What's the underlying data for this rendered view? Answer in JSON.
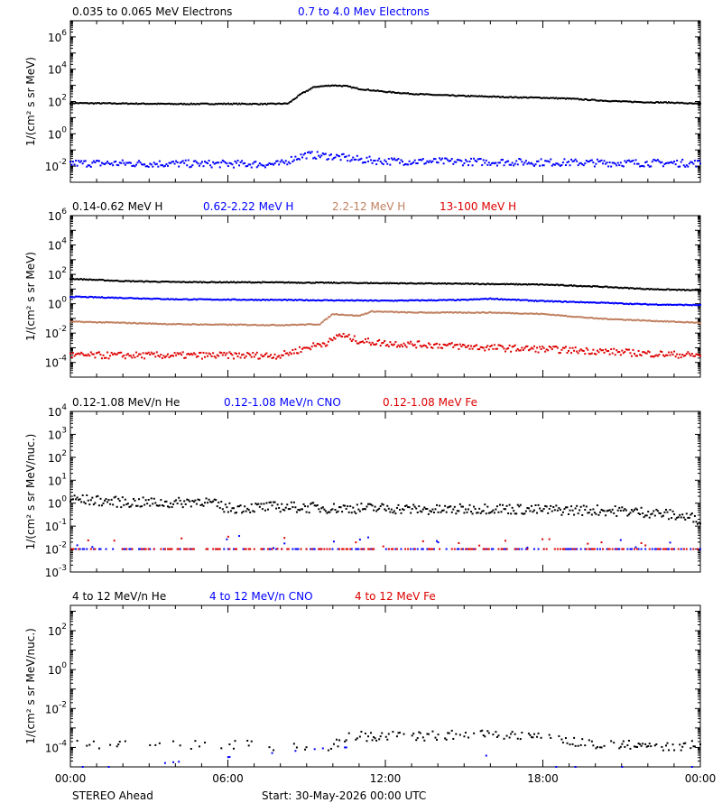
{
  "chart_data": [
    {
      "type": "scatter",
      "ylabel": "1/(cm² s sr MeV)",
      "yscale": "log",
      "ylim": [
        0.001,
        10000000
      ],
      "ytick_exps": [
        -2,
        0,
        2,
        4,
        6
      ],
      "xlim": [
        0,
        24
      ],
      "series": [
        {
          "name": "0.035 to 0.065 MeV Electrons",
          "color": "#000000",
          "shape": "line",
          "points": [
            [
              0,
              80
            ],
            [
              2,
              75
            ],
            [
              4,
              70
            ],
            [
              6,
              72
            ],
            [
              7.5,
              70
            ],
            [
              8.3,
              75
            ],
            [
              8.8,
              300
            ],
            [
              9.3,
              800
            ],
            [
              10,
              1000
            ],
            [
              10.5,
              900
            ],
            [
              11,
              600
            ],
            [
              12,
              400
            ],
            [
              13,
              300
            ],
            [
              14,
              250
            ],
            [
              15,
              220
            ],
            [
              16,
              200
            ],
            [
              17,
              180
            ],
            [
              18,
              170
            ],
            [
              19,
              150
            ],
            [
              20,
              120
            ],
            [
              21,
              100
            ],
            [
              22,
              90
            ],
            [
              23,
              85
            ],
            [
              24,
              70
            ]
          ]
        },
        {
          "name": "0.7 to 4.0 Mev Electrons",
          "color": "#0000ff",
          "shape": "noisy",
          "points": [
            [
              0,
              0.015
            ],
            [
              4,
              0.014
            ],
            [
              8,
              0.013
            ],
            [
              8.5,
              0.03
            ],
            [
              9,
              0.05
            ],
            [
              10,
              0.04
            ],
            [
              11,
              0.025
            ],
            [
              12,
              0.02
            ],
            [
              16,
              0.018
            ],
            [
              20,
              0.016
            ],
            [
              24,
              0.015
            ]
          ]
        }
      ]
    },
    {
      "type": "scatter",
      "ylabel": "1/(cm² s sr MeV)",
      "yscale": "log",
      "ylim": [
        1e-05,
        1000000
      ],
      "ytick_exps": [
        -4,
        -2,
        0,
        2,
        4,
        6
      ],
      "xlim": [
        0,
        24
      ],
      "series": [
        {
          "name": "0.14-0.62 MeV H",
          "color": "#000000",
          "shape": "line",
          "points": [
            [
              0,
              50
            ],
            [
              2,
              35
            ],
            [
              4,
              30
            ],
            [
              8,
              28
            ],
            [
              12,
              25
            ],
            [
              16,
              22
            ],
            [
              18,
              20
            ],
            [
              20,
              15
            ],
            [
              22,
              10
            ],
            [
              24,
              8
            ]
          ]
        },
        {
          "name": "0.62-2.22 MeV H",
          "color": "#0000ff",
          "shape": "line",
          "points": [
            [
              0,
              3
            ],
            [
              2,
              2.5
            ],
            [
              4,
              2
            ],
            [
              8,
              1.8
            ],
            [
              12,
              1.6
            ],
            [
              15,
              1.8
            ],
            [
              16,
              2.2
            ],
            [
              18,
              1.5
            ],
            [
              20,
              1.2
            ],
            [
              22,
              0.9
            ],
            [
              24,
              0.8
            ]
          ]
        },
        {
          "name": "2.2-12 MeV H",
          "color": "#c08060",
          "shape": "line",
          "points": [
            [
              0,
              0.06
            ],
            [
              2,
              0.05
            ],
            [
              4,
              0.04
            ],
            [
              8,
              0.035
            ],
            [
              9.5,
              0.04
            ],
            [
              10,
              0.2
            ],
            [
              11,
              0.15
            ],
            [
              11.5,
              0.3
            ],
            [
              13,
              0.25
            ],
            [
              16,
              0.25
            ],
            [
              18,
              0.2
            ],
            [
              20,
              0.1
            ],
            [
              22,
              0.07
            ],
            [
              24,
              0.05
            ]
          ]
        },
        {
          "name": "13-100 MeV H",
          "color": "#dd0000",
          "shape": "noisy",
          "points": [
            [
              0,
              0.0003
            ],
            [
              4,
              0.0003
            ],
            [
              8,
              0.0003
            ],
            [
              9,
              0.001
            ],
            [
              10,
              0.003
            ],
            [
              10.2,
              0.008
            ],
            [
              11,
              0.003
            ],
            [
              12,
              0.002
            ],
            [
              14,
              0.0015
            ],
            [
              16,
              0.001
            ],
            [
              18,
              0.0008
            ],
            [
              20,
              0.0006
            ],
            [
              22,
              0.0004
            ],
            [
              24,
              0.0003
            ]
          ]
        }
      ]
    },
    {
      "type": "scatter",
      "ylabel": "1/(cm² s sr MeV/nuc.)",
      "yscale": "log",
      "ylim": [
        0.001,
        10000
      ],
      "ytick_exps": [
        -3,
        -2,
        -1,
        0,
        1,
        2,
        3,
        4
      ],
      "xlim": [
        0,
        24
      ],
      "series": [
        {
          "name": "0.12-1.08 MeV/n He",
          "color": "#000000",
          "shape": "noisy",
          "points": [
            [
              0,
              1.5
            ],
            [
              2,
              1.1
            ],
            [
              4,
              1.0
            ],
            [
              5,
              1.3
            ],
            [
              6,
              0.6
            ],
            [
              8,
              0.7
            ],
            [
              10,
              0.6
            ],
            [
              12,
              0.6
            ],
            [
              14,
              0.5
            ],
            [
              16,
              0.6
            ],
            [
              18,
              0.5
            ],
            [
              20,
              0.5
            ],
            [
              22,
              0.4
            ],
            [
              23,
              0.3
            ],
            [
              24,
              0.2
            ]
          ]
        },
        {
          "name": "0.12-1.08 MeV/n CNO",
          "color": "#0000ff",
          "shape": "floor",
          "points": [
            [
              0,
              0.01
            ],
            [
              24,
              0.01
            ]
          ]
        },
        {
          "name": "0.12-1.08 MeV Fe",
          "color": "#dd0000",
          "shape": "floor",
          "points": [
            [
              0,
              0.01
            ],
            [
              24,
              0.01
            ]
          ]
        }
      ]
    },
    {
      "type": "scatter",
      "ylabel": "1/(cm² s sr MeV/nuc.)",
      "yscale": "log",
      "ylim": [
        1e-05,
        2000
      ],
      "ytick_exps": [
        -4,
        -2,
        0,
        2
      ],
      "xlim": [
        0,
        24
      ],
      "series": [
        {
          "name": "4 to 12 MeV/n He",
          "color": "#000000",
          "shape": "sparse",
          "points": [
            [
              0,
              0.0001
            ],
            [
              10,
              0.0001
            ],
            [
              10.5,
              0.0003
            ],
            [
              12,
              0.0003
            ],
            [
              14,
              0.0003
            ],
            [
              16,
              0.0004
            ],
            [
              18,
              0.0003
            ],
            [
              20,
              0.0001
            ],
            [
              24,
              0.0001
            ]
          ]
        },
        {
          "name": "4 to 12 MeV/n CNO",
          "color": "#0000ff",
          "shape": "rare",
          "points": [
            [
              2,
              1e-05
            ],
            [
              10,
              0.0001
            ],
            [
              15,
              0.0001
            ],
            [
              17,
              1e-05
            ]
          ]
        },
        {
          "name": "4 to 12 MeV Fe",
          "color": "#dd0000",
          "shape": "none",
          "points": []
        }
      ]
    }
  ],
  "x_tick_labels": [
    "00:00",
    "06:00",
    "12:00",
    "18:00",
    "00:00"
  ],
  "footer": {
    "spacecraft": "STEREO Ahead",
    "start": "Start: 30-May-2026 00:00 UTC"
  }
}
